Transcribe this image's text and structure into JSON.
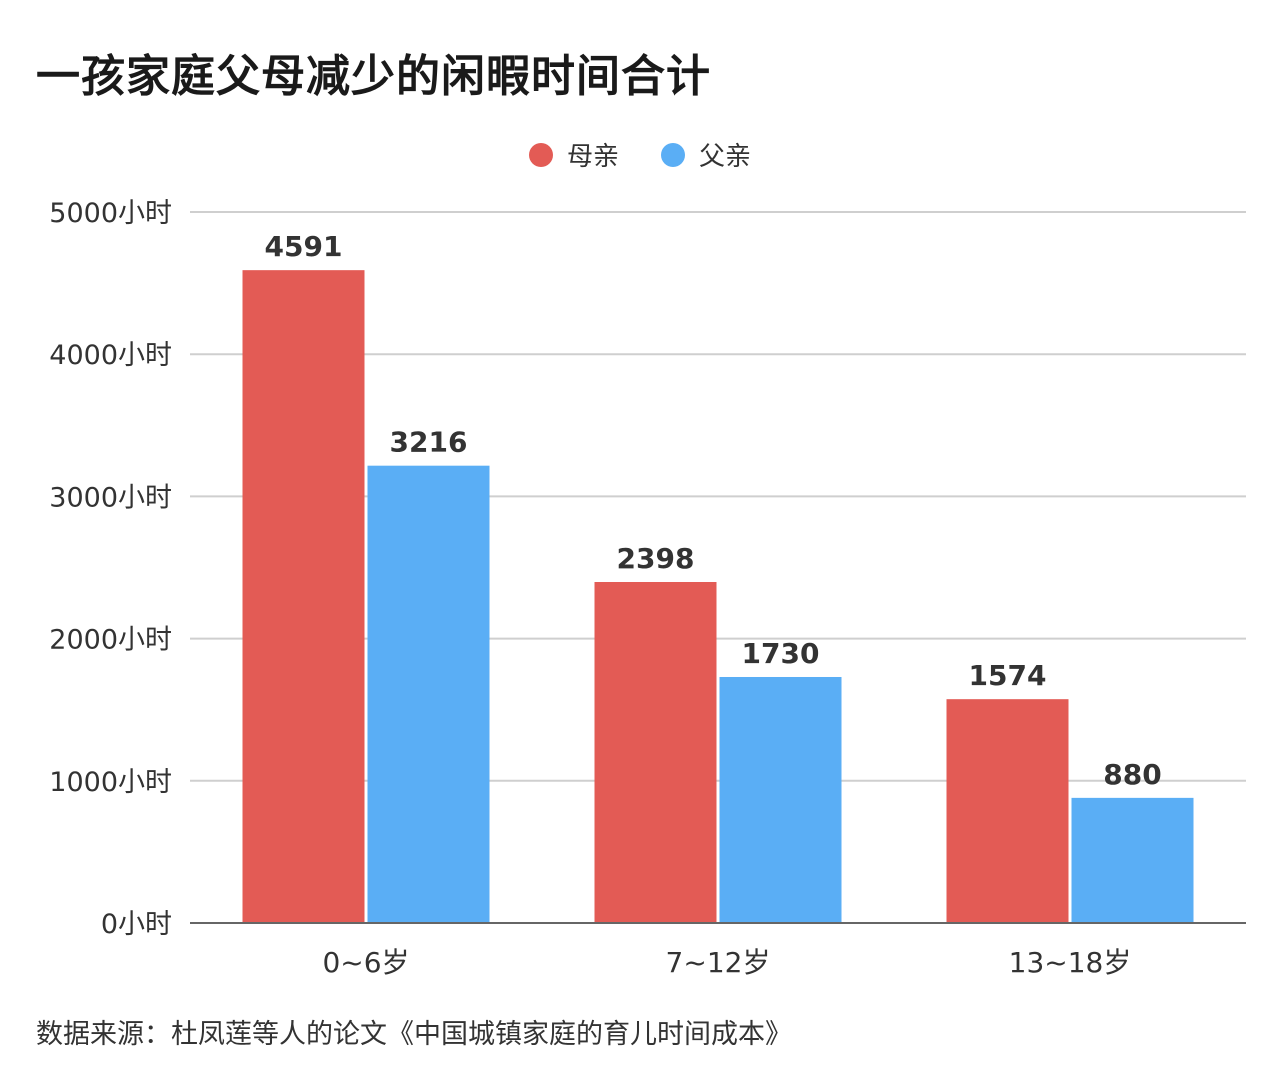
{
  "title": "一孩家庭父母减少的闲暇时间合计",
  "source": "数据来源：杜凤莲等人的论文《中国城镇家庭的育儿时间成本》",
  "chart_data": {
    "type": "bar",
    "categories": [
      "0~6岁",
      "7~12岁",
      "13~18岁"
    ],
    "series": [
      {
        "name": "母亲",
        "color": "#e35b55",
        "values": [
          4591,
          2398,
          1574
        ]
      },
      {
        "name": "父亲",
        "color": "#5aaef5",
        "values": [
          3216,
          1730,
          880
        ]
      }
    ],
    "ylim": [
      0,
      5000
    ],
    "yticks": [
      0,
      1000,
      2000,
      3000,
      4000,
      5000
    ],
    "ytick_labels": [
      "0小时",
      "1000小时",
      "2000小时",
      "3000小时",
      "4000小时",
      "5000小时"
    ],
    "grid": true,
    "legend_position": "top-center",
    "data_labels": true
  }
}
